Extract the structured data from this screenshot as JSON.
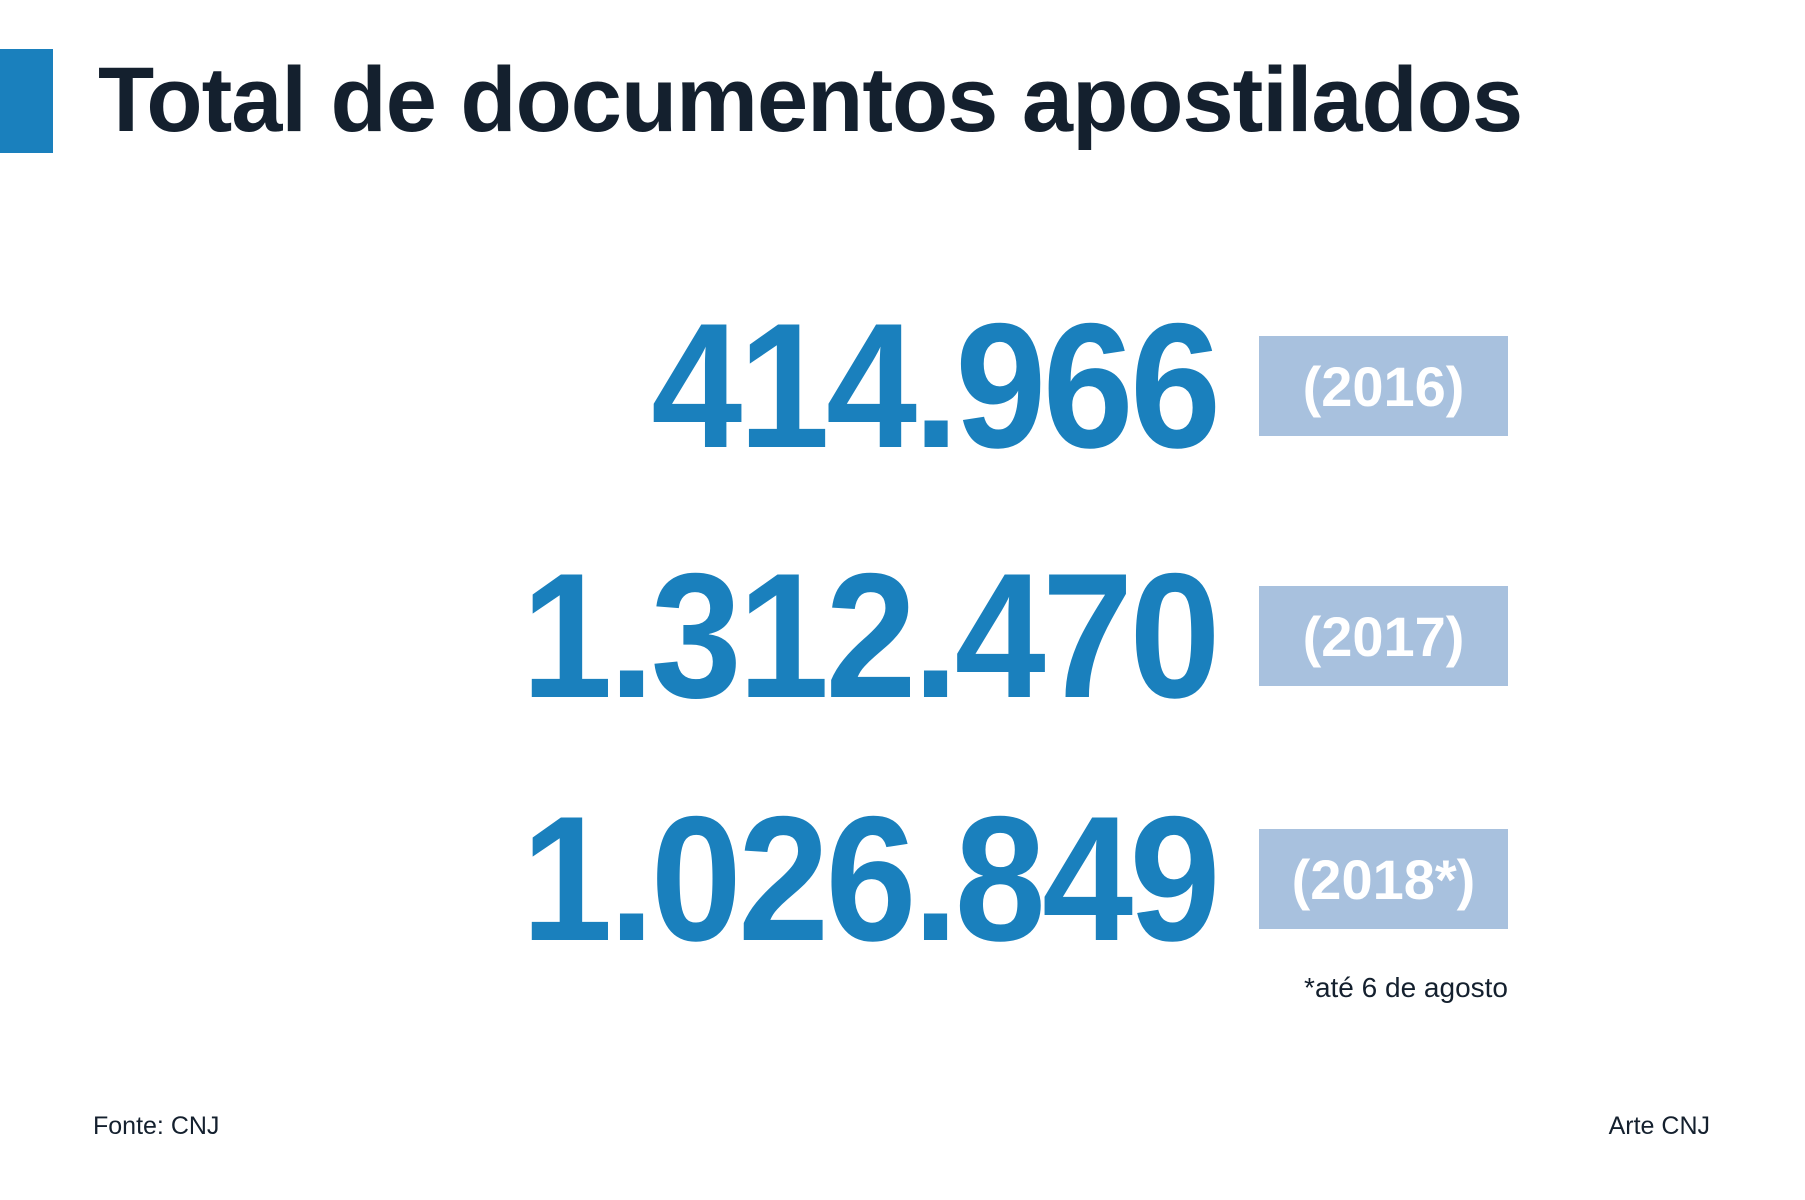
{
  "header": {
    "title": "Total de documentos apostilados"
  },
  "items": [
    {
      "value": "414.966",
      "year": "(2016)"
    },
    {
      "value": "1.312.470",
      "year": "(2017)"
    },
    {
      "value": "1.026.849",
      "year": "(2018*)"
    }
  ],
  "footnote": "*até 6 de agosto",
  "source": "Fonte: CNJ",
  "credit": "Arte CNJ"
}
